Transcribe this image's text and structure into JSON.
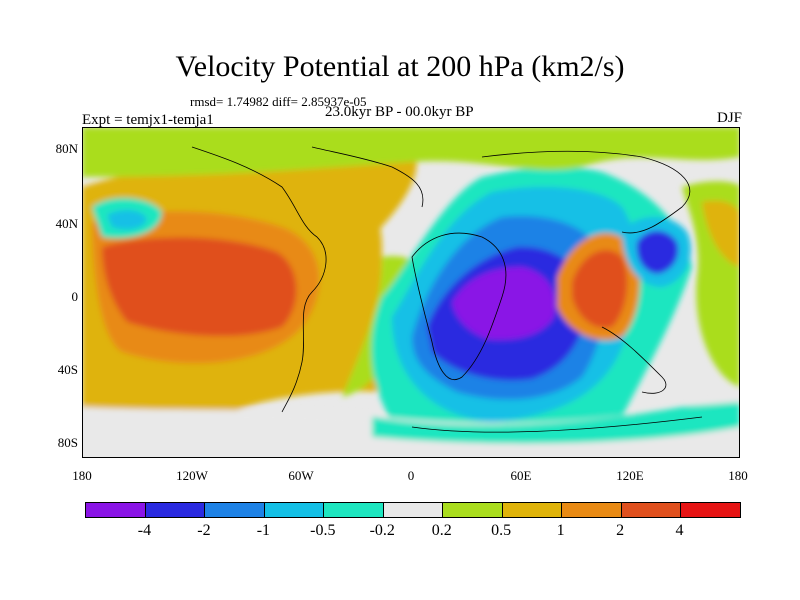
{
  "title": "Velocity Potential at 200 hPa (km2/s)",
  "stats": "rmsd= 1.74982 diff= 2.85937e-05",
  "experiment": "Expt = temjx1-temja1",
  "period": "23.0kyr BP - 00.0kyr BP",
  "season": "DJF",
  "axes": {
    "y_ticks": [
      "80N",
      "40N",
      "0",
      "40S",
      "80S"
    ],
    "x_ticks": [
      "180",
      "120W",
      "60W",
      "0",
      "60E",
      "120E",
      "180"
    ]
  },
  "colorbar": {
    "colors": [
      "#8a14e6",
      "#2a2ae0",
      "#1e82e6",
      "#14c0e6",
      "#1ee6c0",
      "#e9e9e9",
      "#aadd1e",
      "#dfb30a",
      "#e88a14",
      "#e0501e",
      "#e61414"
    ],
    "labels": [
      "-4",
      "-2",
      "-1",
      "-0.5",
      "-0.2",
      "0.2",
      "0.5",
      "1",
      "2",
      "4"
    ]
  },
  "map": {
    "background": "#e9e9e9"
  }
}
